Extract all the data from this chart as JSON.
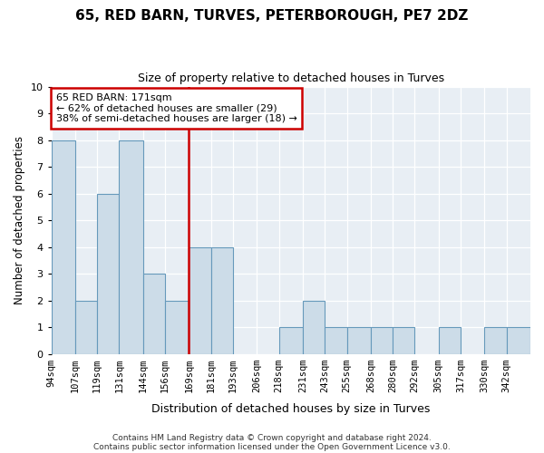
{
  "title": "65, RED BARN, TURVES, PETERBOROUGH, PE7 2DZ",
  "subtitle": "Size of property relative to detached houses in Turves",
  "xlabel": "Distribution of detached houses by size in Turves",
  "ylabel": "Number of detached properties",
  "annotation_line1": "65 RED BARN: 171sqm",
  "annotation_line2": "← 62% of detached houses are smaller (29)",
  "annotation_line3": "38% of semi-detached houses are larger (18) →",
  "marker_value": 169,
  "bins": [
    "94sqm",
    "107sqm",
    "119sqm",
    "131sqm",
    "144sqm",
    "156sqm",
    "169sqm",
    "181sqm",
    "193sqm",
    "206sqm",
    "218sqm",
    "231sqm",
    "243sqm",
    "255sqm",
    "268sqm",
    "280sqm",
    "292sqm",
    "305sqm",
    "317sqm",
    "330sqm",
    "342sqm"
  ],
  "bin_edges": [
    94,
    107,
    119,
    131,
    144,
    156,
    169,
    181,
    193,
    206,
    218,
    231,
    243,
    255,
    268,
    280,
    292,
    305,
    317,
    330,
    342,
    355
  ],
  "counts": [
    8,
    2,
    6,
    8,
    3,
    2,
    4,
    4,
    0,
    0,
    1,
    2,
    1,
    1,
    1,
    1,
    0,
    1,
    0,
    1,
    1
  ],
  "bar_color": "#ccdce8",
  "bar_edge_color": "#6699bb",
  "marker_color": "#cc0000",
  "bg_color": "#ffffff",
  "plot_bg_color": "#e8eef4",
  "annotation_box_color": "white",
  "annotation_box_edge": "#cc0000",
  "ylim": [
    0,
    10
  ],
  "yticks": [
    0,
    1,
    2,
    3,
    4,
    5,
    6,
    7,
    8,
    9,
    10
  ],
  "footer1": "Contains HM Land Registry data © Crown copyright and database right 2024.",
  "footer2": "Contains public sector information licensed under the Open Government Licence v3.0."
}
